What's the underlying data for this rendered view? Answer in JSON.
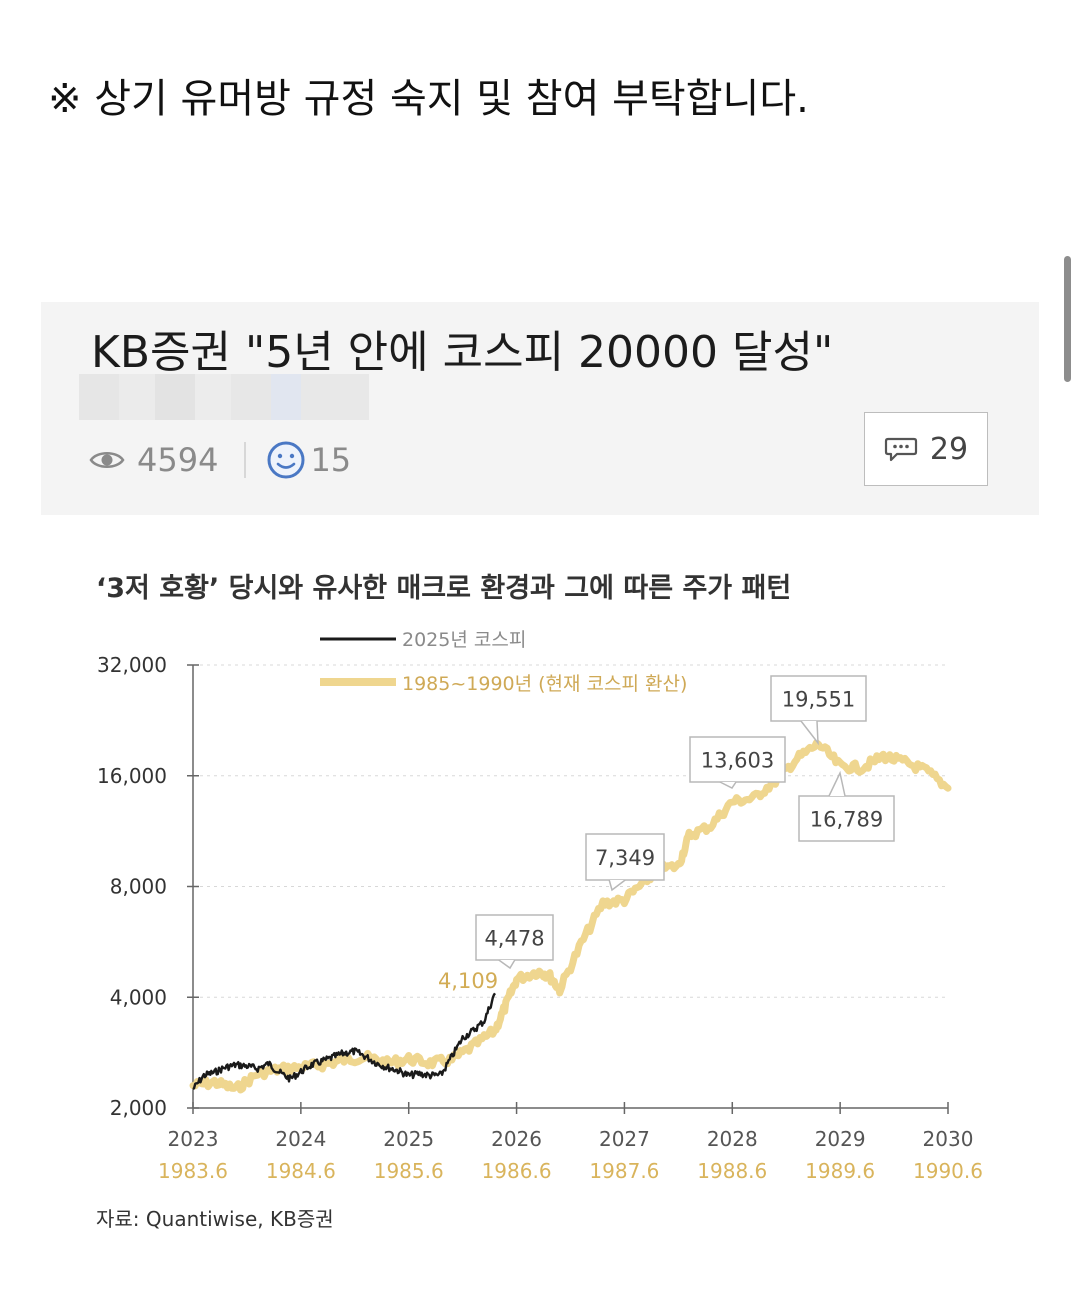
{
  "notice": "※ 상기 유머방 규정 숙지 및 참여 부탁합니다.",
  "post": {
    "title": "KB증권 \"5년 안에 코스피 20000 달성\"",
    "views": "4594",
    "likes": "15",
    "comments": "29",
    "icons": {
      "views": "eye-icon",
      "likes": "smiley-icon",
      "comments": "speech-bubble-icon"
    }
  },
  "chart": {
    "title": "‘3저 호황’ 당시와 유사한 매크로 환경과 그에 따른 주가 패턴",
    "source": "자료: Quantiwise, KB증권"
  },
  "chart_data": {
    "type": "line",
    "title": "‘3저 호황’ 당시와 유사한 매크로 환경과 그에 따른 주가 패턴",
    "xlabel": "",
    "ylabel": "",
    "log_scale_y": true,
    "ylim": [
      2000,
      32000
    ],
    "xlim": [
      2023,
      2030
    ],
    "y_ticks": [
      "32,000",
      "16,000",
      "8,000",
      "4,000",
      "2,000"
    ],
    "y_tick_values": [
      32000,
      16000,
      8000,
      4000,
      2000
    ],
    "x_ticks": [
      "2023",
      "2024",
      "2025",
      "2026",
      "2027",
      "2028",
      "2029",
      "2030"
    ],
    "x_ticks_secondary": [
      "1983.6",
      "1984.6",
      "1985.6",
      "1986.6",
      "1987.6",
      "1988.6",
      "1989.6",
      "1990.6"
    ],
    "legend": [
      "2025년 코스피",
      "1985~1990년 (현재 코스피 환산)"
    ],
    "legend_position": "top-left",
    "grid": true,
    "colors": {
      "kospi2025": "#1a1a1a",
      "historical": "#efd68f",
      "callout_border": "#b8b8b8",
      "label": "#d2ac55"
    },
    "series": [
      {
        "name": "2025년 코스피",
        "x": [
          2023.0,
          2023.1,
          2023.2,
          2023.3,
          2023.4,
          2023.5,
          2023.6,
          2023.7,
          2023.8,
          2023.9,
          2024.0,
          2024.1,
          2024.2,
          2024.3,
          2024.4,
          2024.5,
          2024.6,
          2024.7,
          2024.8,
          2024.9,
          2025.0,
          2025.1,
          2025.2,
          2025.3,
          2025.4,
          2025.5,
          2025.6,
          2025.7,
          2025.8
        ],
        "values": [
          2250,
          2450,
          2500,
          2580,
          2620,
          2600,
          2560,
          2640,
          2500,
          2400,
          2510,
          2620,
          2680,
          2750,
          2820,
          2850,
          2760,
          2650,
          2580,
          2530,
          2450,
          2480,
          2450,
          2460,
          2760,
          3100,
          3250,
          3450,
          4100
        ]
      },
      {
        "name": "1985~1990년 (현재 코스피 환산)",
        "x": [
          2023.0,
          2023.2,
          2023.4,
          2023.6,
          2023.8,
          2024.0,
          2024.2,
          2024.4,
          2024.6,
          2024.8,
          2025.0,
          2025.2,
          2025.4,
          2025.6,
          2025.8,
          2025.9,
          2026.0,
          2026.2,
          2026.3,
          2026.4,
          2026.6,
          2026.8,
          2027.0,
          2027.2,
          2027.3,
          2027.5,
          2027.6,
          2027.8,
          2028.0,
          2028.2,
          2028.4,
          2028.6,
          2028.8,
          2029.0,
          2029.2,
          2029.4,
          2029.6,
          2029.8,
          2030.0
        ],
        "values": [
          2300,
          2350,
          2250,
          2480,
          2550,
          2580,
          2620,
          2700,
          2750,
          2650,
          2720,
          2650,
          2700,
          2950,
          3250,
          3800,
          4478,
          4700,
          4600,
          4200,
          5600,
          7200,
          7349,
          8300,
          8900,
          9100,
          11000,
          11700,
          13603,
          13900,
          15500,
          17800,
          19551,
          17000,
          16789,
          18100,
          17400,
          16500,
          14800
        ]
      }
    ],
    "annotations": [
      {
        "label": "4,109",
        "x": 2025.85,
        "y": 4109
      },
      {
        "label": "4,478",
        "x": 2026.0,
        "y": 4478
      },
      {
        "label": "7,349",
        "x": 2027.0,
        "y": 7349
      },
      {
        "label": "13,603",
        "x": 2028.0,
        "y": 13603
      },
      {
        "label": "19,551",
        "x": 2028.8,
        "y": 19551
      },
      {
        "label": "16,789",
        "x": 2029.2,
        "y": 16789
      }
    ]
  }
}
